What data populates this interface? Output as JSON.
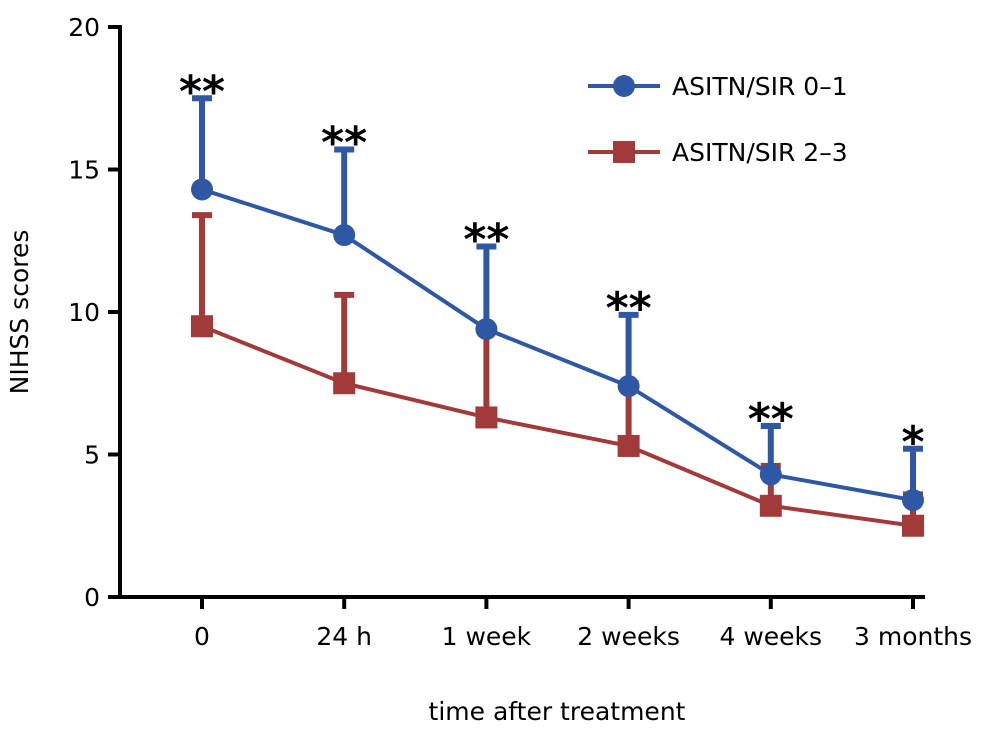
{
  "chart_data": {
    "type": "line",
    "title": "",
    "xlabel": "time after treatment",
    "ylabel": "NIHSS scores",
    "categories": [
      "0",
      "24 h",
      "1 week",
      "2 weeks",
      "4 weeks",
      "3 months"
    ],
    "ylim": [
      0,
      20
    ],
    "yticks": [
      0,
      5,
      10,
      15,
      20
    ],
    "grid": false,
    "legend_position": "top-right",
    "error_bars": "upper only",
    "series": [
      {
        "name": "ASITN/SIR 0–1",
        "marker": "circle",
        "color": "#2e57a6",
        "values": [
          14.3,
          12.7,
          9.4,
          7.4,
          4.3,
          3.4
        ],
        "error_upper": [
          17.5,
          15.7,
          12.3,
          9.9,
          6.0,
          5.2
        ]
      },
      {
        "name": "ASITN/SIR 2–3",
        "marker": "square",
        "color": "#a23a3a",
        "values": [
          9.5,
          7.5,
          6.3,
          5.3,
          3.2,
          2.5
        ],
        "error_upper": [
          13.4,
          10.6,
          9.4,
          7.5,
          4.6,
          3.6
        ]
      }
    ],
    "annotations": [
      {
        "x": "0",
        "text": "**"
      },
      {
        "x": "24 h",
        "text": "**"
      },
      {
        "x": "1 week",
        "text": "**"
      },
      {
        "x": "2 weeks",
        "text": "**"
      },
      {
        "x": "4 weeks",
        "text": "**"
      },
      {
        "x": "3 months",
        "text": "*"
      }
    ]
  }
}
